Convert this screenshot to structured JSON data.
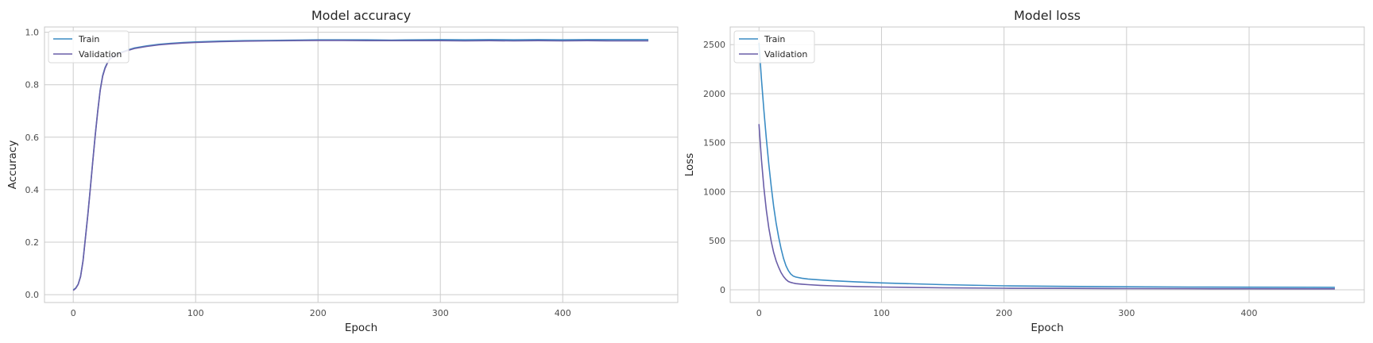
{
  "chart_data": [
    {
      "type": "line",
      "title": "Model accuracy",
      "xlabel": "Epoch",
      "ylabel": "Accuracy",
      "xlim": [
        -23.5,
        494
      ],
      "ylim": [
        -0.03,
        1.02
      ],
      "xticks": [
        0,
        100,
        200,
        300,
        400
      ],
      "yticks": [
        0.0,
        0.2,
        0.4,
        0.6,
        0.8,
        1.0
      ],
      "ytick_labels": [
        "0.0",
        "0.2",
        "0.4",
        "0.6",
        "0.8",
        "1.0"
      ],
      "grid": true,
      "legend_position": "upper left",
      "series": [
        {
          "name": "Train",
          "color": "#3a8cc4",
          "x": [
            0,
            2,
            4,
            6,
            8,
            10,
            12,
            14,
            16,
            18,
            20,
            22,
            24,
            26,
            28,
            30,
            35,
            40,
            45,
            50,
            60,
            70,
            80,
            90,
            100,
            120,
            140,
            160,
            180,
            200,
            220,
            240,
            260,
            280,
            300,
            320,
            340,
            360,
            380,
            400,
            420,
            440,
            470
          ],
          "y": [
            0.018,
            0.025,
            0.04,
            0.07,
            0.13,
            0.22,
            0.31,
            0.41,
            0.51,
            0.61,
            0.7,
            0.78,
            0.835,
            0.865,
            0.885,
            0.9,
            0.915,
            0.925,
            0.933,
            0.94,
            0.948,
            0.954,
            0.958,
            0.961,
            0.963,
            0.966,
            0.968,
            0.969,
            0.97,
            0.971,
            0.971,
            0.971,
            0.97,
            0.971,
            0.972,
            0.971,
            0.972,
            0.971,
            0.972,
            0.971,
            0.972,
            0.972,
            0.972
          ]
        },
        {
          "name": "Validation",
          "color": "#6a5ea8",
          "x": [
            0,
            2,
            4,
            6,
            8,
            10,
            12,
            14,
            16,
            18,
            20,
            22,
            24,
            26,
            28,
            30,
            35,
            40,
            45,
            50,
            60,
            70,
            80,
            90,
            100,
            120,
            140,
            160,
            180,
            200,
            220,
            240,
            260,
            280,
            300,
            320,
            340,
            360,
            380,
            400,
            420,
            440,
            470
          ],
          "y": [
            0.016,
            0.024,
            0.039,
            0.068,
            0.128,
            0.218,
            0.308,
            0.408,
            0.508,
            0.608,
            0.698,
            0.778,
            0.832,
            0.862,
            0.883,
            0.898,
            0.913,
            0.923,
            0.931,
            0.938,
            0.946,
            0.952,
            0.956,
            0.959,
            0.961,
            0.964,
            0.966,
            0.967,
            0.968,
            0.969,
            0.969,
            0.968,
            0.968,
            0.968,
            0.968,
            0.967,
            0.968,
            0.967,
            0.968,
            0.967,
            0.968,
            0.967,
            0.967
          ]
        }
      ]
    },
    {
      "type": "line",
      "title": "Model loss",
      "xlabel": "Epoch",
      "ylabel": "Loss",
      "xlim": [
        -23.5,
        494
      ],
      "ylim": [
        -130,
        2680
      ],
      "xticks": [
        0,
        100,
        200,
        300,
        400
      ],
      "yticks": [
        0,
        500,
        1000,
        1500,
        2000,
        2500
      ],
      "ytick_labels": [
        "0",
        "500",
        "1000",
        "1500",
        "2000",
        "2500"
      ],
      "grid": true,
      "legend_position": "upper left",
      "series": [
        {
          "name": "Train",
          "color": "#3a8cc4",
          "x": [
            0,
            2,
            4,
            6,
            8,
            10,
            12,
            14,
            16,
            18,
            20,
            22,
            24,
            26,
            28,
            30,
            35,
            40,
            50,
            60,
            80,
            100,
            150,
            200,
            250,
            300,
            350,
            400,
            470
          ],
          "y": [
            2520,
            2150,
            1830,
            1540,
            1280,
            1050,
            850,
            680,
            540,
            420,
            320,
            245,
            195,
            160,
            140,
            130,
            118,
            110,
            100,
            92,
            80,
            70,
            52,
            40,
            34,
            30,
            28,
            26,
            25
          ]
        },
        {
          "name": "Validation",
          "color": "#6a5ea8",
          "x": [
            0,
            2,
            4,
            6,
            8,
            10,
            12,
            14,
            16,
            18,
            20,
            22,
            24,
            26,
            28,
            30,
            35,
            40,
            50,
            60,
            80,
            100,
            150,
            200,
            250,
            300,
            350,
            400,
            470
          ],
          "y": [
            1690,
            1330,
            1040,
            810,
            630,
            490,
            380,
            295,
            230,
            175,
            135,
            105,
            85,
            75,
            68,
            63,
            57,
            52,
            45,
            40,
            33,
            28,
            20,
            16,
            14,
            12,
            11,
            10,
            9
          ]
        }
      ]
    }
  ]
}
